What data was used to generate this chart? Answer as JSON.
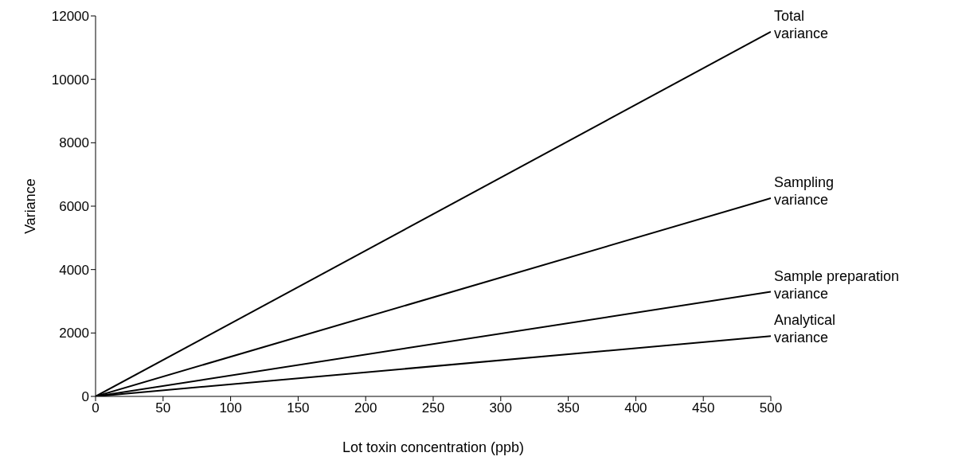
{
  "chart_data": {
    "type": "line",
    "xlabel": "Lot toxin concentration (ppb)",
    "ylabel": "Variance",
    "x": [
      0,
      500
    ],
    "series": [
      {
        "name": "Total variance",
        "color": "#000000",
        "values": [
          0,
          11500
        ]
      },
      {
        "name": "Sampling variance",
        "color": "#000000",
        "values": [
          0,
          6250
        ]
      },
      {
        "name": "Sample preparation variance",
        "color": "#000000",
        "values": [
          0,
          3300
        ]
      },
      {
        "name": "Analytical variance",
        "color": "#000000",
        "values": [
          0,
          1900
        ]
      }
    ],
    "xlim": [
      0,
      500
    ],
    "xticks": [
      0,
      50,
      100,
      150,
      200,
      250,
      300,
      350,
      400,
      450,
      500
    ],
    "ylim": [
      0,
      12000
    ],
    "yticks": [
      0,
      2000,
      4000,
      6000,
      8000,
      10000,
      12000
    ],
    "grid": false,
    "legend": false,
    "marker": "none",
    "line_style": "solid"
  }
}
